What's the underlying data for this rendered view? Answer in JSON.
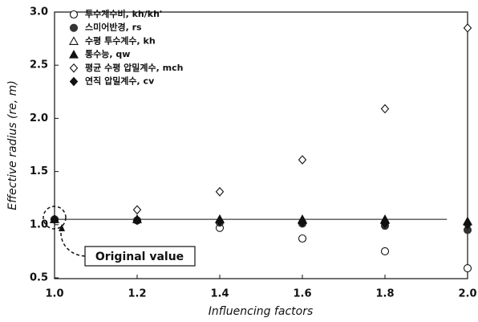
{
  "chart_data": {
    "type": "scatter",
    "xlabel": "Influencing factors",
    "ylabel": "Effective radius (re, m)",
    "x": [
      1.0,
      1.2,
      1.4,
      1.6,
      1.8,
      2.0
    ],
    "series": [
      {
        "name": "투수계수비, kh/kh'",
        "color": "#111111",
        "marker": "circle",
        "filled": false,
        "values": [
          1.05,
          1.04,
          0.97,
          0.87,
          0.75,
          0.59
        ]
      },
      {
        "name": "스미어반경, rs",
        "color": "#333333",
        "marker": "circle",
        "filled": true,
        "values": [
          1.05,
          1.04,
          1.02,
          1.01,
          0.99,
          0.95
        ]
      },
      {
        "name": "수평 투수계수, kh",
        "color": "#111111",
        "marker": "triangle",
        "filled": false,
        "values": [
          1.05,
          1.05,
          1.05,
          1.04,
          1.04,
          1.03
        ]
      },
      {
        "name": "통수능, qw",
        "color": "#111111",
        "marker": "triangle",
        "filled": true,
        "values": [
          1.05,
          1.05,
          1.05,
          1.05,
          1.05,
          1.03
        ]
      },
      {
        "name": "평균 수평 압밀계수, mch",
        "color": "#111111",
        "marker": "diamond",
        "filled": false,
        "values": [
          1.05,
          1.14,
          1.31,
          1.61,
          2.09,
          2.85
        ]
      },
      {
        "name": "연직 압밀계수, cv",
        "color": "#111111",
        "marker": "diamond",
        "filled": true,
        "values": [
          1.05,
          1.04,
          1.03,
          1.02,
          1.01,
          1.0
        ]
      }
    ],
    "reference_line": 1.05,
    "annotation": "Original value",
    "xlim": [
      1.0,
      2.0
    ],
    "xticks": [
      {
        "value": 1.0,
        "label": "1.0"
      },
      1.2,
      1.4,
      1.6,
      1.8,
      {
        "value": 2.0,
        "label": "2.0"
      }
    ],
    "ylim": [
      0.5,
      3.0
    ],
    "yticks": [
      0.5,
      {
        "value": 1.0,
        "label": "1.0"
      },
      1.5,
      {
        "value": 2.0,
        "label": "2.0"
      },
      2.5,
      {
        "value": 3.0,
        "label": "3.0"
      }
    ],
    "legend": "upper left"
  }
}
